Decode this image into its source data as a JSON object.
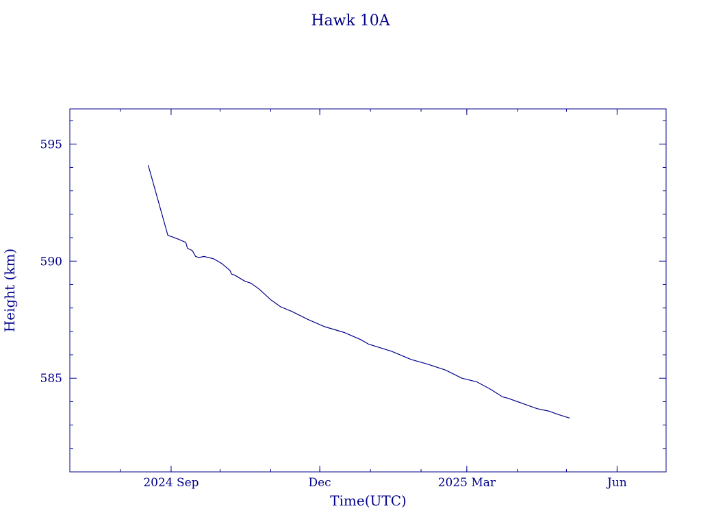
{
  "chart_data": {
    "type": "line",
    "title": "Hawk 10A",
    "xlabel": "Time(UTC)",
    "ylabel": "Height (km)",
    "x_ticks": [
      {
        "date": "2024-09-01",
        "label": "2024 Sep"
      },
      {
        "date": "2024-12-01",
        "label": "Dec"
      },
      {
        "date": "2025-03-01",
        "label": "2025 Mar"
      },
      {
        "date": "2025-06-01",
        "label": "Jun"
      }
    ],
    "y_ticks": [
      {
        "value": 585,
        "label": "585"
      },
      {
        "value": 590,
        "label": "590"
      },
      {
        "value": 595,
        "label": "595"
      }
    ],
    "xlim": [
      "2024-07-01",
      "2025-07-01"
    ],
    "ylim": [
      581.0,
      596.5
    ],
    "grid": false,
    "series": [
      {
        "points": [
          [
            "2024-08-18",
            594.1
          ],
          [
            "2024-08-30",
            591.1
          ],
          [
            "2024-09-05",
            590.95
          ],
          [
            "2024-09-10",
            590.8
          ],
          [
            "2024-09-11",
            590.55
          ],
          [
            "2024-09-14",
            590.45
          ],
          [
            "2024-09-16",
            590.2
          ],
          [
            "2024-09-18",
            590.15
          ],
          [
            "2024-09-21",
            590.2
          ],
          [
            "2024-09-27",
            590.1
          ],
          [
            "2024-10-02",
            589.9
          ],
          [
            "2024-10-07",
            589.6
          ],
          [
            "2024-10-08",
            589.45
          ],
          [
            "2024-10-10",
            589.4
          ],
          [
            "2024-10-16",
            589.15
          ],
          [
            "2024-10-20",
            589.05
          ],
          [
            "2024-10-25",
            588.8
          ],
          [
            "2024-11-01",
            588.35
          ],
          [
            "2024-11-04",
            588.2
          ],
          [
            "2024-11-07",
            588.05
          ],
          [
            "2024-11-14",
            587.85
          ],
          [
            "2024-11-24",
            587.5
          ],
          [
            "2024-12-04",
            587.2
          ],
          [
            "2024-12-16",
            586.95
          ],
          [
            "2024-12-26",
            586.65
          ],
          [
            "2024-12-31",
            586.45
          ],
          [
            "2025-01-14",
            586.15
          ],
          [
            "2025-01-26",
            585.8
          ],
          [
            "2025-02-05",
            585.6
          ],
          [
            "2025-02-16",
            585.35
          ],
          [
            "2025-02-26",
            585.0
          ],
          [
            "2025-03-07",
            584.85
          ],
          [
            "2025-03-15",
            584.55
          ],
          [
            "2025-03-23",
            584.2
          ],
          [
            "2025-03-26",
            584.15
          ],
          [
            "2025-04-05",
            583.9
          ],
          [
            "2025-04-13",
            583.7
          ],
          [
            "2025-04-20",
            583.6
          ],
          [
            "2025-04-26",
            583.45
          ],
          [
            "2025-05-03",
            583.3
          ]
        ]
      }
    ]
  }
}
